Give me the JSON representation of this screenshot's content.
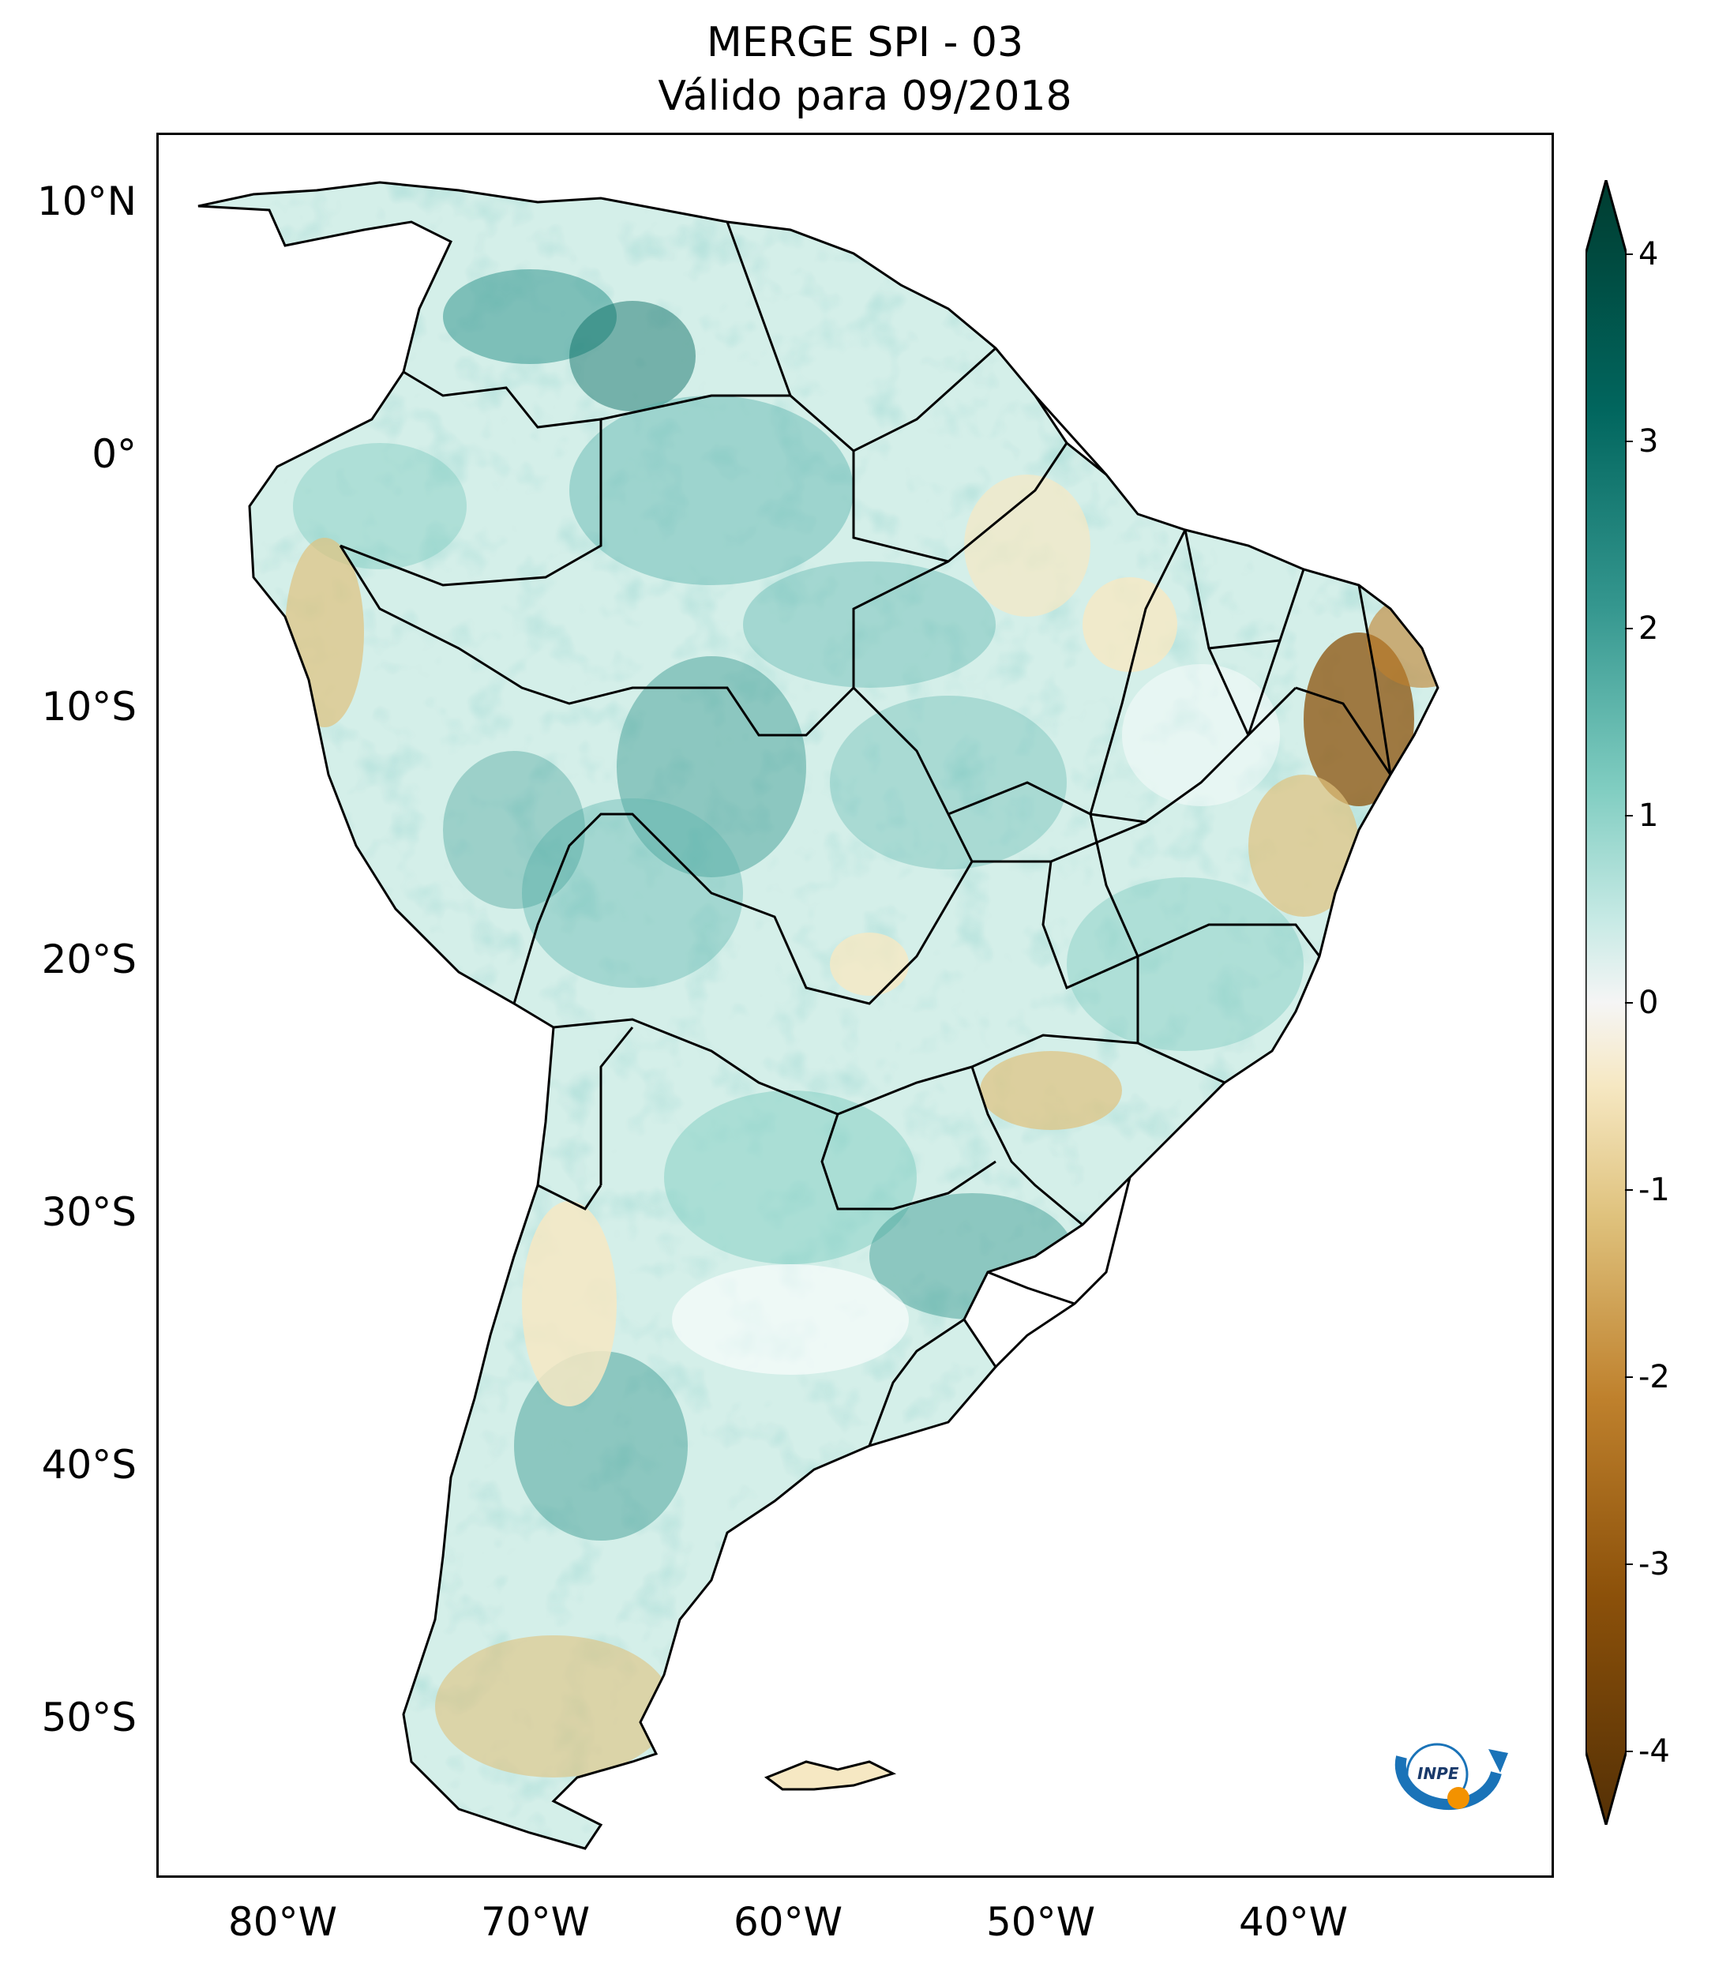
{
  "title": {
    "line1": "MERGE   SPI - 03",
    "line2": "Válido para 09/2018"
  },
  "axes": {
    "lat_ticks": [
      "10°N",
      "0°",
      "10°S",
      "20°S",
      "30°S",
      "40°S",
      "50°S"
    ],
    "lon_ticks": [
      "80°W",
      "70°W",
      "60°W",
      "50°W",
      "40°W"
    ]
  },
  "colorbar": {
    "ticks": [
      "4",
      "3",
      "2",
      "1",
      "0",
      "-1",
      "-2",
      "-3",
      "-4"
    ],
    "colormap": "BrBG",
    "range": [
      -4,
      4
    ],
    "extend": "both",
    "colors": {
      "dark_green": "#003c30",
      "teal": "#35978f",
      "light_teal": "#c7eae5",
      "white": "#f5f5f5",
      "tan": "#f6e8c3",
      "light_brown": "#dfc27d",
      "brown": "#bf812d",
      "dark_brown": "#543005"
    }
  },
  "logo": {
    "text": "INPE"
  }
}
